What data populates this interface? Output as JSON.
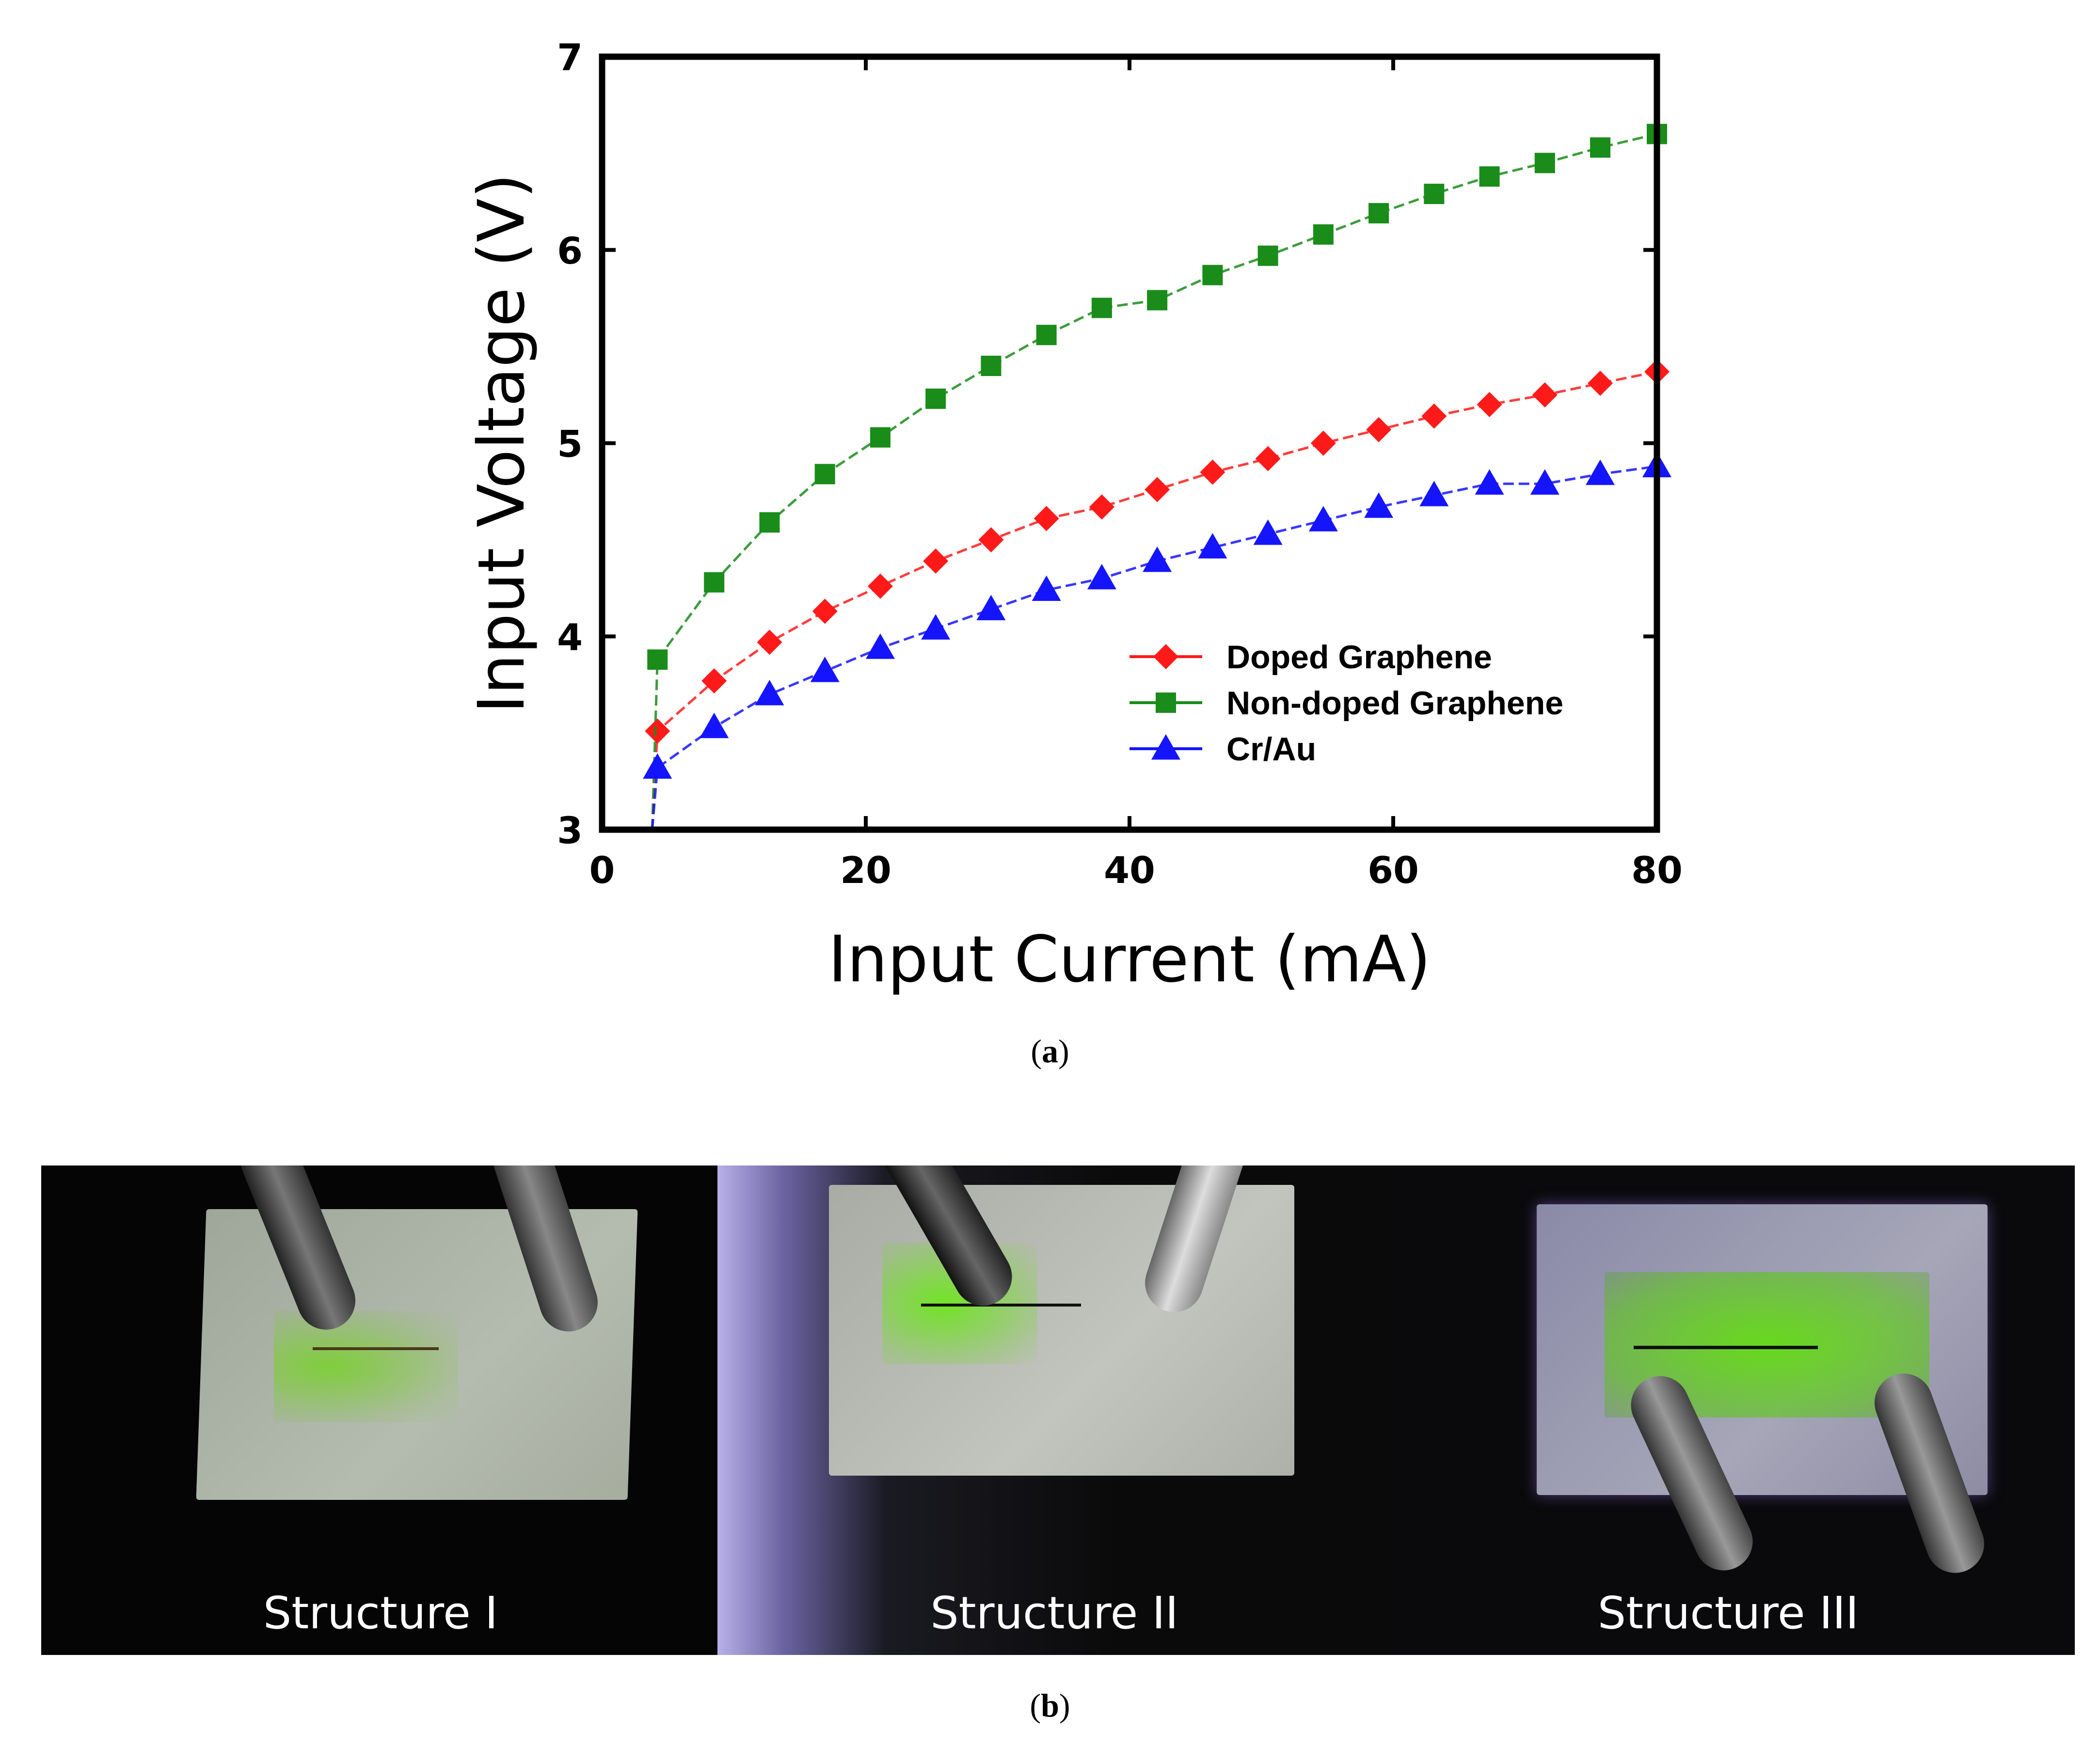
{
  "chart_data": {
    "type": "line",
    "xlabel": "Input Current (mA)",
    "ylabel": "Input Voltage (V)",
    "xlim": [
      0,
      80
    ],
    "ylim": [
      3,
      7
    ],
    "x_ticks": [
      0,
      20,
      40,
      60,
      80
    ],
    "y_ticks": [
      3,
      4,
      5,
      6,
      7
    ],
    "grid": false,
    "legend_position": "bottom-right",
    "series": [
      {
        "name": "Doped Graphene",
        "color": "#ff1a1a",
        "marker": "diamond",
        "x": [
          3.8,
          4.2,
          8.5,
          12.7,
          16.9,
          21.1,
          25.3,
          29.5,
          33.7,
          37.9,
          42.1,
          46.3,
          50.5,
          54.7,
          58.9,
          63.1,
          67.3,
          71.5,
          75.7,
          80
        ],
        "y": [
          3.0,
          3.51,
          3.77,
          3.97,
          4.13,
          4.26,
          4.39,
          4.5,
          4.61,
          4.67,
          4.76,
          4.85,
          4.92,
          5.0,
          5.07,
          5.14,
          5.2,
          5.25,
          5.31,
          5.37
        ]
      },
      {
        "name": "Non-doped Graphene",
        "color": "#1a8c1a",
        "marker": "square",
        "x": [
          3.8,
          4.2,
          8.5,
          12.7,
          16.9,
          21.1,
          25.3,
          29.5,
          33.7,
          37.9,
          42.1,
          46.3,
          50.5,
          54.7,
          58.9,
          63.1,
          67.3,
          71.5,
          75.7,
          80
        ],
        "y": [
          3.0,
          3.88,
          4.28,
          4.59,
          4.84,
          5.03,
          5.23,
          5.4,
          5.56,
          5.7,
          5.74,
          5.87,
          5.97,
          6.08,
          6.19,
          6.29,
          6.38,
          6.45,
          6.53,
          6.6
        ]
      },
      {
        "name": "Cr/Au",
        "color": "#1414ff",
        "marker": "triangle",
        "x": [
          3.8,
          4.2,
          8.5,
          12.7,
          16.9,
          21.1,
          25.3,
          29.5,
          33.7,
          37.9,
          42.1,
          46.3,
          50.5,
          54.7,
          58.9,
          63.1,
          67.3,
          71.5,
          75.7,
          80
        ],
        "y": [
          3.0,
          3.32,
          3.53,
          3.7,
          3.82,
          3.94,
          4.04,
          4.14,
          4.24,
          4.3,
          4.39,
          4.46,
          4.53,
          4.6,
          4.67,
          4.73,
          4.79,
          4.79,
          4.84,
          4.88
        ]
      }
    ]
  },
  "captions": {
    "a": "a",
    "b": "b"
  },
  "photos": {
    "labels": [
      "Structure I",
      "Structure II",
      "Structure III"
    ]
  }
}
